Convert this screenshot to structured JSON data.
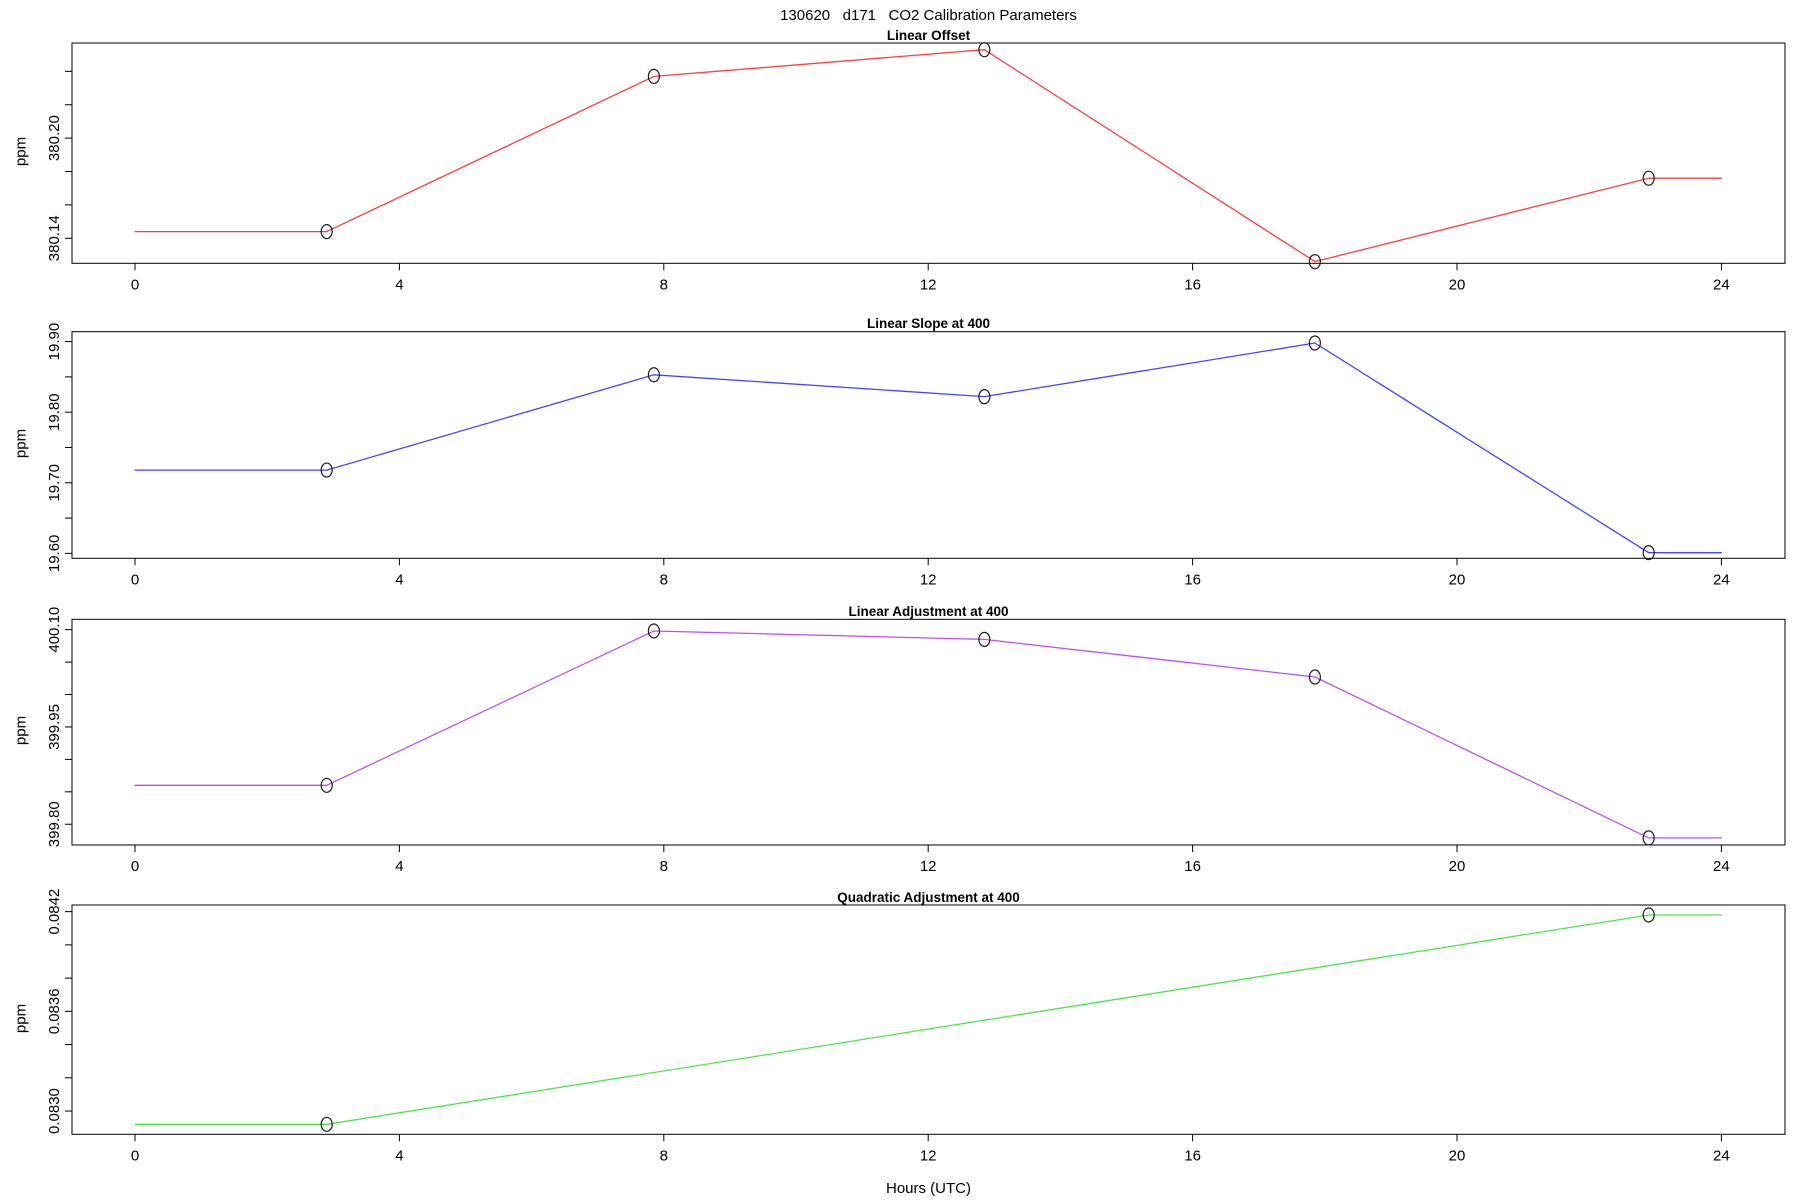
{
  "header": {
    "title": "130620   d171   CO2 Calibration Parameters"
  },
  "chart_data": {
    "type": "line",
    "xlabel": "Hours (UTC)",
    "ylabel": "ppm",
    "xlim": [
      0,
      24
    ],
    "x_ticks": [
      0,
      4,
      8,
      12,
      16,
      20,
      24
    ],
    "x_tick_labels": [
      "0",
      "4",
      "8",
      "12",
      "16",
      "20",
      "24"
    ],
    "grid": "off",
    "legend": "none",
    "marker": "open-circle",
    "colors": {
      "axis": "#000000",
      "marker": "#1a1a1a"
    },
    "panels": [
      {
        "title": "Linear Offset",
        "color": "#FF4040",
        "x": [
          2.9,
          7.85,
          12.85,
          17.85,
          22.9
        ],
        "y": [
          380.144,
          380.237,
          380.253,
          380.126,
          380.176
        ],
        "flat_extend_to_xlim": true,
        "ylim": [
          380.125,
          380.257
        ],
        "y_ticks": [
          380.14,
          380.16,
          380.18,
          380.2,
          380.22,
          380.24
        ],
        "y_tick_labels": [
          "380.14",
          "",
          "",
          "380.20",
          "",
          ""
        ]
      },
      {
        "title": "Linear Slope at 400",
        "color": "#4444FF",
        "x": [
          2.9,
          7.85,
          12.85,
          17.85,
          22.9
        ],
        "y": [
          19.718,
          19.853,
          19.822,
          19.898,
          19.601
        ],
        "flat_extend_to_xlim": true,
        "ylim": [
          19.593,
          19.914
        ],
        "y_ticks": [
          19.6,
          19.65,
          19.7,
          19.75,
          19.8,
          19.85,
          19.9
        ],
        "y_tick_labels": [
          "19.60",
          "",
          "19.70",
          "",
          "19.80",
          "",
          "19.90"
        ]
      },
      {
        "title": "Linear Adjustment at 400",
        "color": "#BF4FEA",
        "x": [
          2.9,
          7.85,
          12.85,
          17.85,
          22.9
        ],
        "y": [
          399.86,
          400.098,
          400.085,
          400.027,
          399.779
        ],
        "flat_extend_to_xlim": true,
        "ylim": [
          399.768,
          400.116
        ],
        "y_ticks": [
          399.8,
          399.85,
          399.9,
          399.95,
          400.0,
          400.05,
          400.1
        ],
        "y_tick_labels": [
          "399.80",
          "",
          "",
          "399.95",
          "",
          "",
          "400.10"
        ]
      },
      {
        "title": "Quadratic Adjustment at 400",
        "color": "#4EE44E",
        "x": [
          2.9,
          22.9
        ],
        "y": [
          0.08292,
          0.08418
        ],
        "flat_extend_to_xlim": true,
        "ylim": [
          0.08286,
          0.08424
        ],
        "y_ticks": [
          0.083,
          0.0832,
          0.0834,
          0.0836,
          0.0838,
          0.084,
          0.0842
        ],
        "y_tick_labels": [
          "0.0830",
          "",
          "",
          "0.0836",
          "",
          "",
          "0.0842"
        ]
      }
    ]
  }
}
